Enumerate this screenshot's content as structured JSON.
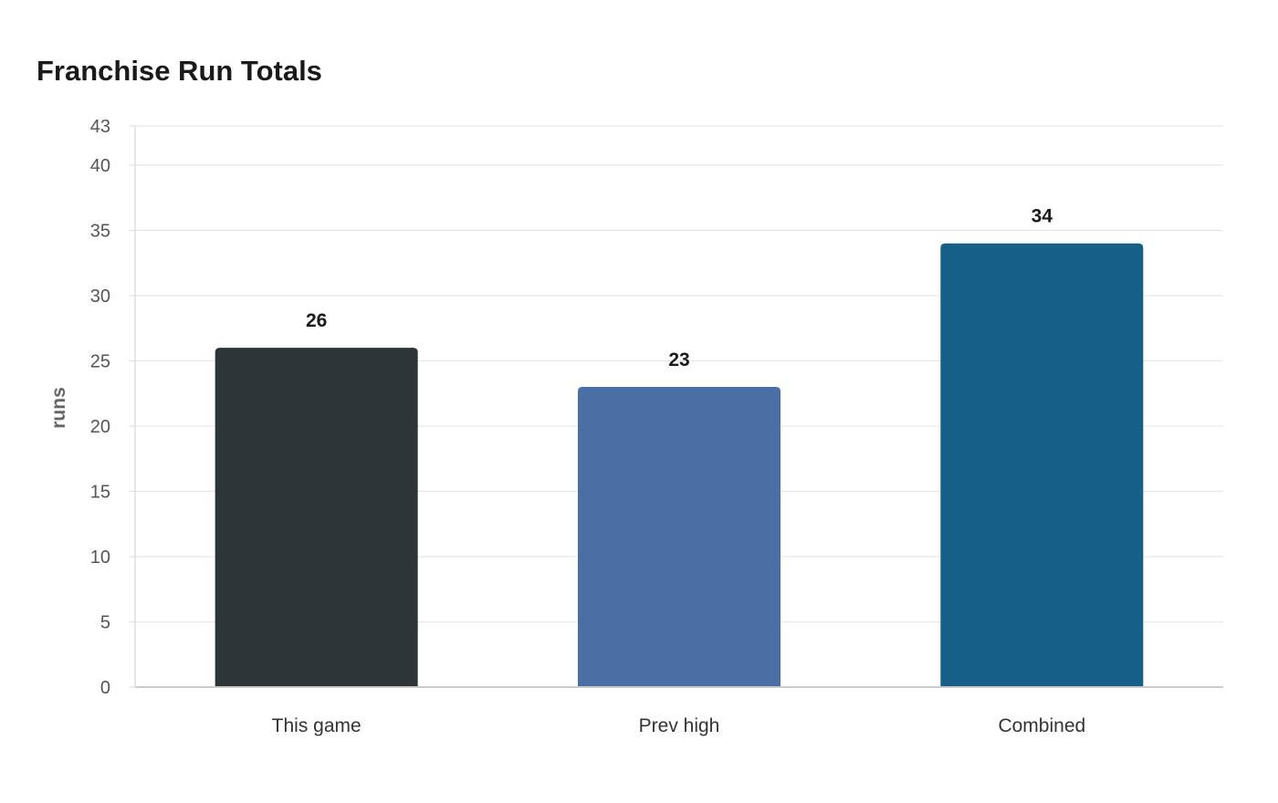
{
  "chart_data": {
    "type": "bar",
    "title": "Franchise Run Totals",
    "xlabel": "",
    "ylabel": "runs",
    "categories": [
      "This game",
      "Prev high",
      "Combined"
    ],
    "values": [
      26,
      23,
      34
    ],
    "data_labels": [
      "26",
      "23",
      "34"
    ],
    "colors": [
      "#2d3436",
      "#4a6fa5",
      "#166088"
    ],
    "ylim": [
      0,
      43
    ],
    "yticks": [
      0,
      5,
      10,
      15,
      20,
      25,
      30,
      35,
      40,
      43
    ],
    "grid": true,
    "legend": "none"
  }
}
